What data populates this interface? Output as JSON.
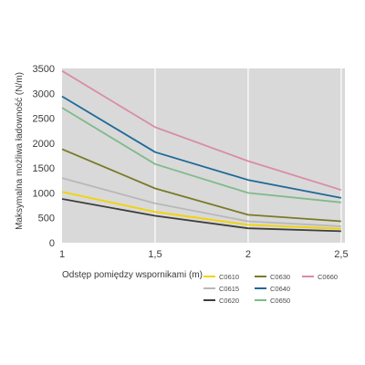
{
  "chart_data": {
    "type": "line",
    "title": "",
    "xlabel": "Odstęp pomiędzy wspornikami (m)",
    "ylabel": "Maksymalna możliwa ładowność (N/m)",
    "x": [
      1,
      1.5,
      2,
      2.5
    ],
    "x_tick_values": [
      1,
      1.5,
      2,
      2.5
    ],
    "x_tick_labels": [
      "1",
      "1,5",
      "2",
      "2,5"
    ],
    "y_tick_values": [
      0,
      500,
      1000,
      1500,
      2000,
      2500,
      3000,
      3500
    ],
    "y_tick_labels": [
      "0",
      "500",
      "1000",
      "1500",
      "2000",
      "2500",
      "3000",
      "3500"
    ],
    "xlim": [
      1,
      2.52
    ],
    "ylim": [
      0,
      3500
    ],
    "grid": "vertical lines at x ticks",
    "background": "#d9d9d9",
    "legend_position": "bottom",
    "series": [
      {
        "name": "C0610",
        "color": "#f2d400",
        "values": [
          1020,
          620,
          360,
          280
        ]
      },
      {
        "name": "C0615",
        "color": "#b8b8b8",
        "values": [
          1300,
          790,
          430,
          330
        ]
      },
      {
        "name": "C0620",
        "color": "#3d3d3d",
        "values": [
          880,
          540,
          290,
          230
        ]
      },
      {
        "name": "C0630",
        "color": "#7a7a2a",
        "values": [
          1880,
          1090,
          560,
          430
        ]
      },
      {
        "name": "C0640",
        "color": "#1d6a96",
        "values": [
          2940,
          1820,
          1260,
          900
        ]
      },
      {
        "name": "C0650",
        "color": "#7fba8c",
        "values": [
          2710,
          1580,
          1000,
          810
        ]
      },
      {
        "name": "C0660",
        "color": "#d98ca6",
        "values": [
          3450,
          2320,
          1640,
          1060
        ]
      }
    ]
  }
}
